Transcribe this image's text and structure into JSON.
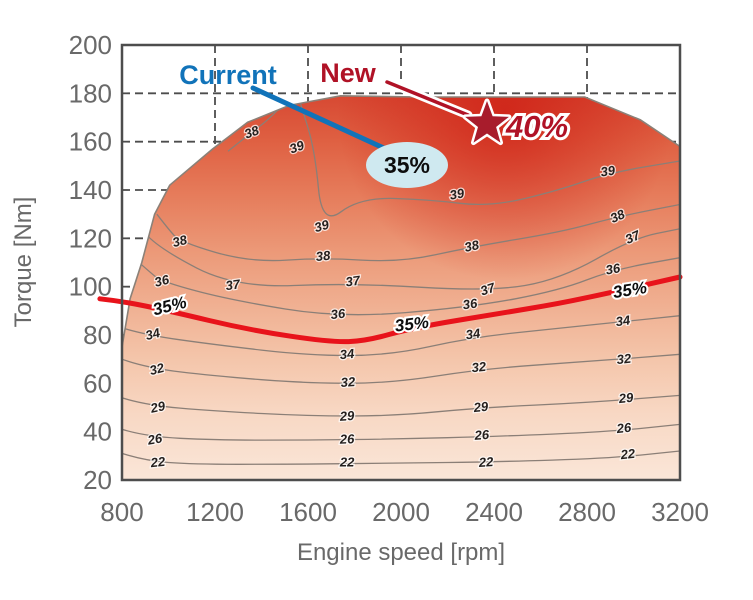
{
  "chart_data": {
    "type": "contour",
    "title": "",
    "xlabel": "Engine speed [rpm]",
    "ylabel": "Torque [Nm]",
    "xlim": [
      800,
      3200
    ],
    "ylim": [
      20,
      200
    ],
    "x_ticks": [
      800,
      1200,
      1600,
      2000,
      2400,
      2800,
      3200
    ],
    "y_ticks": [
      20,
      40,
      60,
      80,
      100,
      120,
      140,
      160,
      180,
      200
    ],
    "grid_x": [
      1200,
      1600,
      2000,
      2400,
      2800
    ],
    "grid_y": [
      40,
      60,
      80,
      100,
      120,
      140,
      160,
      180
    ],
    "grid_style": "dashed, drawn beneath shaded region",
    "boundary": [
      [
        800,
        20
      ],
      [
        800,
        75
      ],
      [
        835,
        95
      ],
      [
        885,
        110
      ],
      [
        940,
        130
      ],
      [
        1005,
        142
      ],
      [
        1190,
        157
      ],
      [
        1340,
        168
      ],
      [
        1520,
        175
      ],
      [
        1740,
        179
      ],
      [
        2080,
        178.5
      ],
      [
        2790,
        178.5
      ],
      [
        3030,
        169
      ],
      [
        3200,
        158
      ],
      [
        3200,
        20
      ]
    ],
    "contours": [
      {
        "level": 22,
        "points": [
          [
            800,
            31
          ],
          [
            900,
            28
          ],
          [
            1100,
            26.5
          ],
          [
            1500,
            26.5
          ],
          [
            2000,
            27
          ],
          [
            2400,
            27.5
          ],
          [
            2900,
            29
          ],
          [
            3200,
            32
          ]
        ]
      },
      {
        "level": 26,
        "points": [
          [
            800,
            41
          ],
          [
            900,
            38
          ],
          [
            1200,
            36.5
          ],
          [
            1600,
            36.5
          ],
          [
            2000,
            37
          ],
          [
            2400,
            38
          ],
          [
            2900,
            40
          ],
          [
            3200,
            43
          ]
        ]
      },
      {
        "level": 29,
        "points": [
          [
            800,
            54
          ],
          [
            900,
            51
          ],
          [
            1200,
            48.5
          ],
          [
            1600,
            46.5
          ],
          [
            1970,
            46.5
          ],
          [
            2350,
            50
          ],
          [
            2800,
            52
          ],
          [
            3200,
            55
          ]
        ]
      },
      {
        "level": 32,
        "points": [
          [
            800,
            70
          ],
          [
            900,
            66.5
          ],
          [
            1200,
            63
          ],
          [
            1600,
            60
          ],
          [
            1950,
            60
          ],
          [
            2350,
            66
          ],
          [
            2800,
            69
          ],
          [
            3200,
            72
          ]
        ]
      },
      {
        "level": 34,
        "points": [
          [
            800,
            83
          ],
          [
            900,
            80
          ],
          [
            1200,
            76
          ],
          [
            1600,
            71.5
          ],
          [
            1950,
            71.5
          ],
          [
            2300,
            79
          ],
          [
            2700,
            83
          ],
          [
            3000,
            86
          ],
          [
            3200,
            88
          ]
        ]
      },
      {
        "level": 36,
        "points": [
          [
            850,
            112
          ],
          [
            920,
            106
          ],
          [
            972,
            102
          ],
          [
            1265,
            94.5
          ],
          [
            1740,
            87
          ],
          [
            2300,
            91.5
          ],
          [
            2684,
            98.5
          ],
          [
            2912,
            107
          ],
          [
            3200,
            112
          ]
        ]
      },
      {
        "level": 37,
        "points": [
          [
            900,
            122
          ],
          [
            955,
            116
          ],
          [
            1286,
            99.5
          ],
          [
            1793,
            101.5
          ],
          [
            2383,
            98
          ],
          [
            2684,
            103
          ],
          [
            2998,
            120
          ],
          [
            3200,
            124
          ]
        ]
      },
      {
        "level": 38,
        "points": [
          [
            950,
            130
          ],
          [
            998,
            124
          ],
          [
            1049,
            118.5
          ],
          [
            1351,
            110
          ],
          [
            1665,
            112
          ],
          [
            1996,
            110
          ],
          [
            2305,
            116.5
          ],
          [
            2684,
            122.5
          ],
          [
            2933,
            129
          ],
          [
            3200,
            134
          ]
        ]
      },
      {
        "level": 38,
        "points": [
          [
            1256,
            156
          ],
          [
            1359,
            164
          ],
          [
            1428,
            169
          ],
          [
            1510,
            177
          ]
        ]
      },
      {
        "level": 39,
        "points": [
          [
            1560,
            178
          ],
          [
            1574,
            174
          ],
          [
            1630,
            156
          ],
          [
            1660,
            125
          ],
          [
            1824,
            137
          ],
          [
            2125,
            136
          ],
          [
            2383,
            133
          ],
          [
            2684,
            140
          ],
          [
            2890,
            147
          ],
          [
            3200,
            152
          ]
        ]
      }
    ],
    "contour_labels": [
      {
        "text": "38",
        "rpm": 1359,
        "nm": 163.6,
        "rot": -20
      },
      {
        "text": "39",
        "rpm": 1553,
        "nm": 157.4,
        "rot": -20
      },
      {
        "text": "38",
        "rpm": 1049,
        "nm": 118.5,
        "rot": -14
      },
      {
        "text": "36",
        "rpm": 972,
        "nm": 102,
        "rot": -14
      },
      {
        "text": "37",
        "rpm": 1277,
        "nm": 100.3,
        "rot": -8
      },
      {
        "text": "39",
        "rpm": 1660,
        "nm": 124.7,
        "rot": -16
      },
      {
        "text": "38",
        "rpm": 1665,
        "nm": 112.3,
        "rot": -6
      },
      {
        "text": "37",
        "rpm": 1793,
        "nm": 101.9,
        "rot": -8
      },
      {
        "text": "36",
        "rpm": 1729,
        "nm": 88.3,
        "rot": -6
      },
      {
        "text": "39",
        "rpm": 2241,
        "nm": 137.9,
        "rot": -10
      },
      {
        "text": "38",
        "rpm": 2305,
        "nm": 116.4,
        "rot": -12
      },
      {
        "text": "37",
        "rpm": 2374,
        "nm": 98.6,
        "rot": -18
      },
      {
        "text": "36",
        "rpm": 2297,
        "nm": 92.4,
        "rot": -8
      },
      {
        "text": "39",
        "rpm": 2890,
        "nm": 147.4,
        "rot": -8
      },
      {
        "text": "38",
        "rpm": 2933,
        "nm": 128.8,
        "rot": -24
      },
      {
        "text": "37",
        "rpm": 2998,
        "nm": 120.1,
        "rot": -24
      },
      {
        "text": "36",
        "rpm": 2912,
        "nm": 106.9,
        "rot": -10
      },
      {
        "text": "34",
        "rpm": 2310,
        "nm": 80,
        "rot": -8
      },
      {
        "text": "34",
        "rpm": 933,
        "nm": 80,
        "rot": -14
      },
      {
        "text": "32",
        "rpm": 951,
        "nm": 65.5,
        "rot": -14
      },
      {
        "text": "29",
        "rpm": 955,
        "nm": 49.8,
        "rot": -12
      },
      {
        "text": "26",
        "rpm": 942,
        "nm": 36.5,
        "rot": -10
      },
      {
        "text": "22",
        "rpm": 955,
        "nm": 27,
        "rot": -6
      },
      {
        "text": "34",
        "rpm": 1768,
        "nm": 71.7,
        "rot": -6
      },
      {
        "text": "32",
        "rpm": 1772,
        "nm": 60.1,
        "rot": -4
      },
      {
        "text": "29",
        "rpm": 1768,
        "nm": 46.1,
        "rot": -4
      },
      {
        "text": "26",
        "rpm": 1768,
        "nm": 36.5,
        "rot": -2
      },
      {
        "text": "22",
        "rpm": 1768,
        "nm": 27,
        "rot": 0
      },
      {
        "text": "32",
        "rpm": 2335,
        "nm": 66.3,
        "rot": -6
      },
      {
        "text": "29",
        "rpm": 2344,
        "nm": 49.8,
        "rot": -6
      },
      {
        "text": "26",
        "rpm": 2348,
        "nm": 38.2,
        "rot": -4
      },
      {
        "text": "22",
        "rpm": 2366,
        "nm": 27,
        "rot": -4
      },
      {
        "text": "34",
        "rpm": 2955,
        "nm": 85.4,
        "rot": -8
      },
      {
        "text": "32",
        "rpm": 2959,
        "nm": 69.7,
        "rot": -6
      },
      {
        "text": "29",
        "rpm": 2968,
        "nm": 53.5,
        "rot": -6
      },
      {
        "text": "26",
        "rpm": 2959,
        "nm": 41.1,
        "rot": -6
      },
      {
        "text": "22",
        "rpm": 2976,
        "nm": 30.3,
        "rot": -6
      }
    ],
    "red_contour": {
      "level": "35%",
      "color": "#e8131b",
      "points": [
        [
          705,
          95
        ],
        [
          800,
          94
        ],
        [
          1000,
          90
        ],
        [
          1350,
          82
        ],
        [
          1700,
          77
        ],
        [
          1850,
          77.5
        ],
        [
          2050,
          83
        ],
        [
          2430,
          89
        ],
        [
          2680,
          93
        ],
        [
          2900,
          97.5
        ],
        [
          3200,
          104
        ]
      ],
      "labels": [
        {
          "text": "35%",
          "rpm": 1006,
          "nm": 91.6,
          "rot": -14
        },
        {
          "text": "35%",
          "rpm": 2047,
          "nm": 84.1,
          "rot": -7
        },
        {
          "text": "35%",
          "rpm": 2985,
          "nm": 98.2,
          "rot": -9
        }
      ]
    },
    "annotations": {
      "current": {
        "label": "Current",
        "color": "#1173b9",
        "ellipse_label": "35%",
        "ellipse_fill": "#cfe9f0",
        "ellipse_stroke": "#1c6eb4",
        "ellipse_rpm": 2026,
        "ellipse_nm": 150.3
      },
      "new": {
        "label": "New",
        "color": "#b01226",
        "star_color": "#a81c2c",
        "value_label": "40%",
        "star_rpm": 2370,
        "star_nm": 167.3
      }
    },
    "colors": {
      "hot_region": "#d43a24",
      "pale_region": "#fae6d8",
      "contour_line": "#8b7f77",
      "grid": "#4d4d4d",
      "axis_text": "#696969"
    }
  }
}
